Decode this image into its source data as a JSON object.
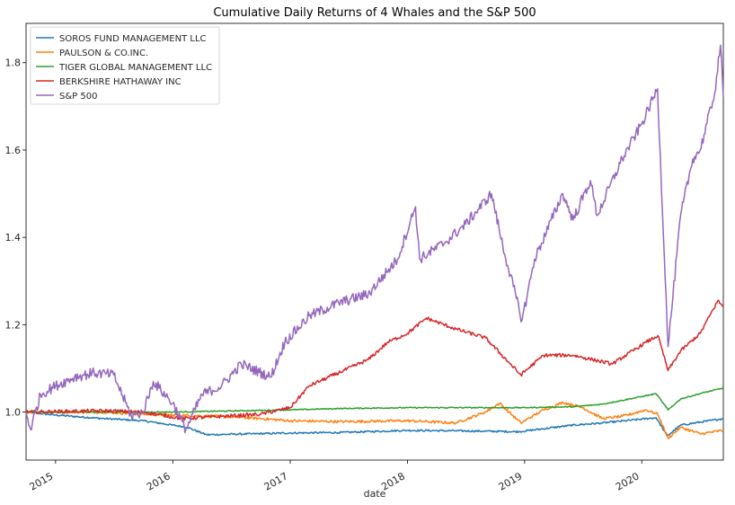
{
  "chart_data": {
    "type": "line",
    "title": "Cumulative Daily Returns of 4 Whales and the S&P 500",
    "xlabel": "date",
    "ylabel": "",
    "xlim": [
      "2014-10-01",
      "2020-09-11"
    ],
    "ylim": [
      0.89,
      1.89
    ],
    "x_ticks": [
      "2015",
      "2016",
      "2017",
      "2018",
      "2019",
      "2020"
    ],
    "y_ticks": [
      "1.0",
      "1.2",
      "1.4",
      "1.6",
      "1.8"
    ],
    "legend": "upper-left",
    "grid": false,
    "series": [
      {
        "name": "SOROS FUND MANAGEMENT LLC",
        "color": "#1f77b4",
        "points": [
          [
            "2014-10-01",
            1.0
          ],
          [
            "2015-01-01",
            0.993
          ],
          [
            "2015-06-01",
            0.985
          ],
          [
            "2015-10-01",
            0.98
          ],
          [
            "2016-01-01",
            0.97
          ],
          [
            "2016-02-15",
            0.965
          ],
          [
            "2016-04-15",
            0.948
          ],
          [
            "2016-09-01",
            0.95
          ],
          [
            "2017-01-01",
            0.952
          ],
          [
            "2017-06-01",
            0.953
          ],
          [
            "2018-01-01",
            0.958
          ],
          [
            "2018-06-01",
            0.957
          ],
          [
            "2018-12-15",
            0.955
          ],
          [
            "2019-06-01",
            0.97
          ],
          [
            "2019-09-01",
            0.975
          ],
          [
            "2020-02-15",
            0.987
          ],
          [
            "2020-03-20",
            0.945
          ],
          [
            "2020-05-01",
            0.97
          ],
          [
            "2020-09-11",
            0.985
          ]
        ]
      },
      {
        "name": "PAULSON & CO.INC.",
        "color": "#ff7f0e",
        "points": [
          [
            "2014-10-01",
            1.0
          ],
          [
            "2015-01-01",
            1.0
          ],
          [
            "2015-06-01",
            1.0
          ],
          [
            "2015-10-01",
            0.995
          ],
          [
            "2016-01-01",
            0.993
          ],
          [
            "2016-06-01",
            0.99
          ],
          [
            "2016-10-01",
            0.985
          ],
          [
            "2017-01-01",
            0.98
          ],
          [
            "2017-06-01",
            0.978
          ],
          [
            "2018-01-01",
            0.98
          ],
          [
            "2018-06-01",
            0.975
          ],
          [
            "2018-09-01",
            1.0
          ],
          [
            "2018-10-15",
            1.02
          ],
          [
            "2018-12-20",
            0.975
          ],
          [
            "2019-03-01",
            1.005
          ],
          [
            "2019-05-01",
            1.022
          ],
          [
            "2019-07-01",
            1.01
          ],
          [
            "2019-09-01",
            0.985
          ],
          [
            "2019-11-01",
            0.99
          ],
          [
            "2020-01-15",
            1.005
          ],
          [
            "2020-02-20",
            0.995
          ],
          [
            "2020-03-23",
            0.94
          ],
          [
            "2020-05-01",
            0.965
          ],
          [
            "2020-07-01",
            0.95
          ],
          [
            "2020-09-11",
            0.958
          ]
        ]
      },
      {
        "name": "TIGER GLOBAL MANAGEMENT LLC",
        "color": "#2ca02c",
        "points": [
          [
            "2014-10-01",
            1.0
          ],
          [
            "2015-06-01",
            1.0
          ],
          [
            "2016-01-01",
            1.0
          ],
          [
            "2016-06-01",
            1.002
          ],
          [
            "2017-01-01",
            1.005
          ],
          [
            "2017-06-01",
            1.008
          ],
          [
            "2018-01-01",
            1.01
          ],
          [
            "2018-06-01",
            1.01
          ],
          [
            "2019-01-01",
            1.01
          ],
          [
            "2019-06-01",
            1.012
          ],
          [
            "2019-09-01",
            1.018
          ],
          [
            "2020-02-15",
            1.042
          ],
          [
            "2020-03-23",
            1.005
          ],
          [
            "2020-05-01",
            1.03
          ],
          [
            "2020-07-15",
            1.045
          ],
          [
            "2020-09-11",
            1.055
          ]
        ]
      },
      {
        "name": "BERKSHIRE HATHAWAY INC",
        "color": "#d62728",
        "points": [
          [
            "2014-10-01",
            1.0
          ],
          [
            "2015-06-01",
            1.003
          ],
          [
            "2015-10-01",
            1.0
          ],
          [
            "2016-02-01",
            0.985
          ],
          [
            "2016-06-01",
            0.99
          ],
          [
            "2016-10-01",
            0.995
          ],
          [
            "2017-01-01",
            1.01
          ],
          [
            "2017-03-01",
            1.06
          ],
          [
            "2017-06-01",
            1.09
          ],
          [
            "2017-09-01",
            1.12
          ],
          [
            "2017-11-01",
            1.16
          ],
          [
            "2018-01-01",
            1.18
          ],
          [
            "2018-03-01",
            1.215
          ],
          [
            "2018-06-01",
            1.19
          ],
          [
            "2018-09-01",
            1.17
          ],
          [
            "2018-12-20",
            1.085
          ],
          [
            "2019-03-01",
            1.13
          ],
          [
            "2019-06-01",
            1.13
          ],
          [
            "2019-08-01",
            1.12
          ],
          [
            "2019-10-01",
            1.11
          ],
          [
            "2020-01-15",
            1.16
          ],
          [
            "2020-02-20",
            1.175
          ],
          [
            "2020-03-23",
            1.095
          ],
          [
            "2020-05-01",
            1.14
          ],
          [
            "2020-07-01",
            1.18
          ],
          [
            "2020-08-25",
            1.255
          ],
          [
            "2020-09-11",
            1.24
          ]
        ]
      },
      {
        "name": "S&P 500",
        "color": "#9467bd",
        "points": [
          [
            "2014-10-01",
            1.0
          ],
          [
            "2014-10-15",
            0.96
          ],
          [
            "2014-11-15",
            1.04
          ],
          [
            "2015-01-01",
            1.06
          ],
          [
            "2015-03-01",
            1.08
          ],
          [
            "2015-05-01",
            1.09
          ],
          [
            "2015-07-01",
            1.085
          ],
          [
            "2015-08-25",
            0.99
          ],
          [
            "2015-10-01",
            1.0
          ],
          [
            "2015-11-01",
            1.07
          ],
          [
            "2016-01-01",
            1.02
          ],
          [
            "2016-02-11",
            0.96
          ],
          [
            "2016-04-01",
            1.04
          ],
          [
            "2016-06-01",
            1.06
          ],
          [
            "2016-08-01",
            1.11
          ],
          [
            "2016-11-01",
            1.08
          ],
          [
            "2016-12-15",
            1.16
          ],
          [
            "2017-03-01",
            1.22
          ],
          [
            "2017-06-01",
            1.25
          ],
          [
            "2017-09-01",
            1.27
          ],
          [
            "2017-12-01",
            1.35
          ],
          [
            "2018-01-26",
            1.47
          ],
          [
            "2018-02-08",
            1.35
          ],
          [
            "2018-05-01",
            1.39
          ],
          [
            "2018-07-01",
            1.43
          ],
          [
            "2018-09-20",
            1.5
          ],
          [
            "2018-10-25",
            1.38
          ],
          [
            "2018-12-24",
            1.21
          ],
          [
            "2019-02-01",
            1.35
          ],
          [
            "2019-04-30",
            1.5
          ],
          [
            "2019-06-01",
            1.44
          ],
          [
            "2019-07-25",
            1.53
          ],
          [
            "2019-08-15",
            1.45
          ],
          [
            "2019-11-01",
            1.58
          ],
          [
            "2020-01-01",
            1.66
          ],
          [
            "2020-02-19",
            1.74
          ],
          [
            "2020-03-23",
            1.15
          ],
          [
            "2020-05-01",
            1.45
          ],
          [
            "2020-06-08",
            1.58
          ],
          [
            "2020-07-01",
            1.6
          ],
          [
            "2020-08-15",
            1.73
          ],
          [
            "2020-09-02",
            1.84
          ],
          [
            "2020-09-11",
            1.72
          ]
        ]
      }
    ]
  }
}
